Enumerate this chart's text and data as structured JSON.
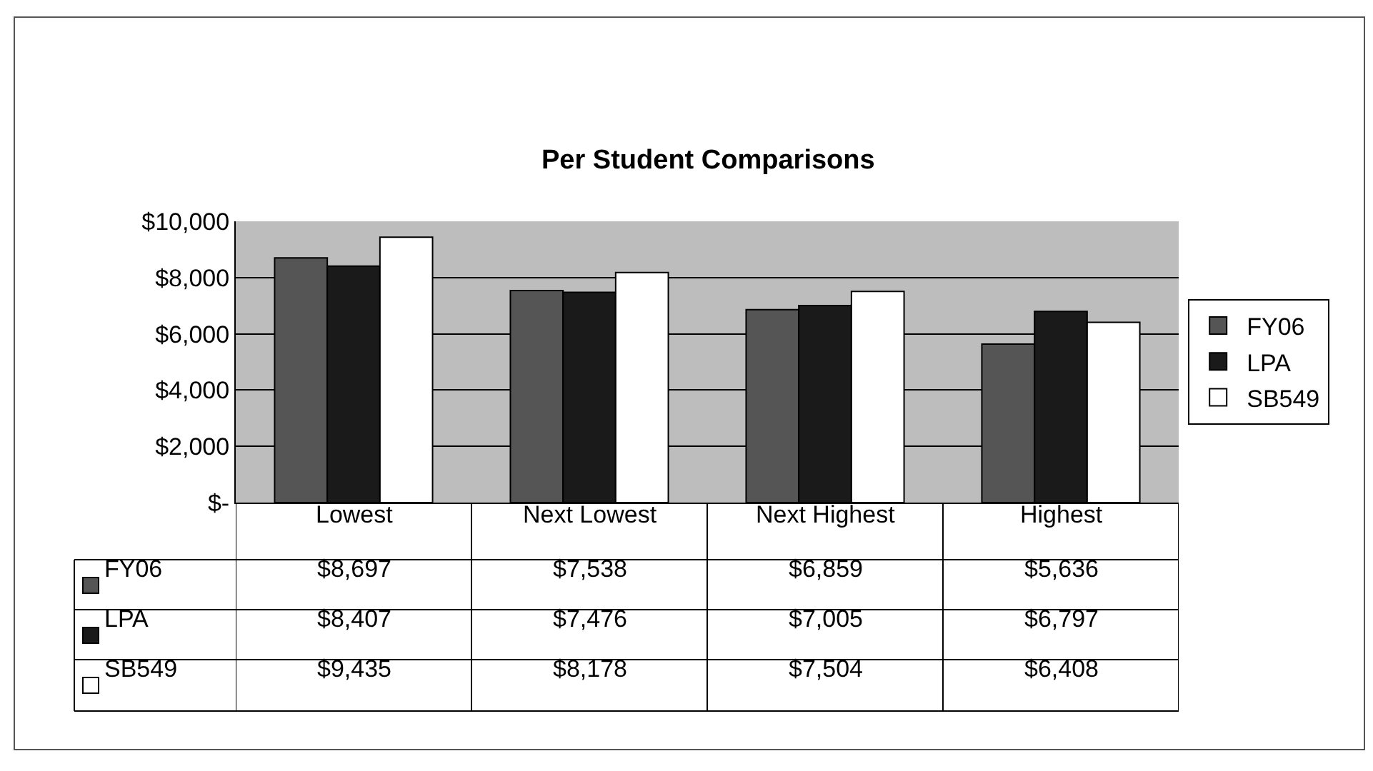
{
  "chart_data": {
    "type": "bar",
    "title": "Per Student Comparisons",
    "categories": [
      "Lowest",
      "Next Lowest",
      "Next Highest",
      "Highest"
    ],
    "series": [
      {
        "name": "FY06",
        "color": "#555555",
        "values": [
          8697,
          7538,
          6859,
          5636
        ],
        "value_labels": [
          "$8,697",
          "$7,538",
          "$6,859",
          "$5,636"
        ]
      },
      {
        "name": "LPA",
        "color": "#1a1a1a",
        "values": [
          8407,
          7476,
          7005,
          6797
        ],
        "value_labels": [
          "$8,407",
          "$7,476",
          "$7,005",
          "$6,797"
        ]
      },
      {
        "name": "SB549",
        "color": "#ffffff",
        "values": [
          9435,
          8178,
          7504,
          6408
        ],
        "value_labels": [
          "$9,435",
          "$8,178",
          "$7,504",
          "$6,408"
        ]
      }
    ],
    "ylim": [
      0,
      10000
    ],
    "yticks": [
      {
        "value": 0,
        "label": "$-"
      },
      {
        "value": 2000,
        "label": "$2,000"
      },
      {
        "value": 4000,
        "label": "$4,000"
      },
      {
        "value": 6000,
        "label": "$6,000"
      },
      {
        "value": 8000,
        "label": "$8,000"
      },
      {
        "value": 10000,
        "label": "$10,000"
      }
    ],
    "grid": "y",
    "legend": "right"
  }
}
